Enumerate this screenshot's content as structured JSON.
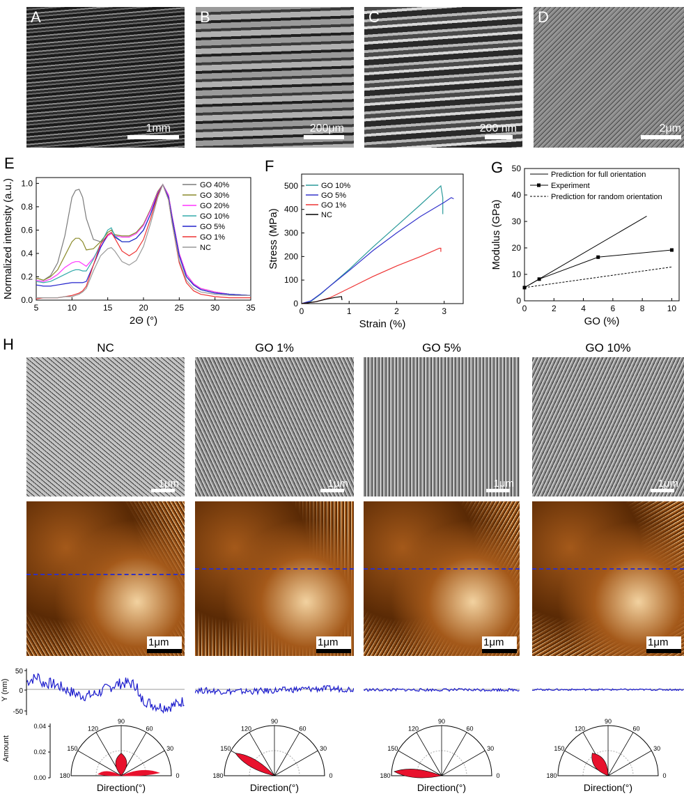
{
  "micrographs": [
    {
      "letter": "A",
      "scale": "1mm"
    },
    {
      "letter": "B",
      "scale": "200μm"
    },
    {
      "letter": "C",
      "scale": "200 nm"
    },
    {
      "letter": "D",
      "scale": "2μm"
    }
  ],
  "panel_letters": {
    "E": "E",
    "F": "F",
    "G": "G",
    "H": "H"
  },
  "chart_data": [
    {
      "panel": "E",
      "type": "line",
      "xlabel": "2Θ (°)",
      "ylabel": "Normalized intensity (a.u.)",
      "xlim": [
        5,
        35
      ],
      "ylim": [
        0,
        1.05
      ],
      "xticks": [
        5,
        10,
        15,
        20,
        25,
        30,
        35
      ],
      "yticks": [
        0.0,
        0.2,
        0.4,
        0.6,
        0.8,
        1.0
      ],
      "legend_position": "top-right",
      "series": [
        {
          "name": "GO 40%",
          "color": "#7a7a7a",
          "x": [
            5,
            6,
            7,
            8,
            9,
            10,
            10.5,
            11,
            11.5,
            12,
            13,
            14,
            15,
            15.5,
            16,
            17,
            18,
            19,
            20,
            21,
            22,
            22.7,
            23.5,
            24,
            25,
            26,
            27,
            28,
            30,
            32,
            35
          ],
          "y": [
            0.19,
            0.17,
            0.21,
            0.32,
            0.55,
            0.88,
            0.94,
            0.95,
            0.88,
            0.7,
            0.52,
            0.5,
            0.58,
            0.6,
            0.56,
            0.55,
            0.55,
            0.58,
            0.65,
            0.78,
            0.93,
            0.99,
            0.9,
            0.72,
            0.4,
            0.22,
            0.14,
            0.1,
            0.07,
            0.05,
            0.04
          ]
        },
        {
          "name": "GO 30%",
          "color": "#8a8a2a",
          "x": [
            5,
            6,
            7,
            8,
            9,
            10,
            10.5,
            11,
            11.5,
            12,
            13,
            14,
            15,
            15.5,
            16,
            17,
            18,
            19,
            20,
            21,
            22,
            22.7,
            23.5,
            24,
            25,
            26,
            27,
            28,
            30,
            32,
            35
          ],
          "y": [
            0.19,
            0.17,
            0.2,
            0.26,
            0.38,
            0.5,
            0.53,
            0.53,
            0.5,
            0.43,
            0.44,
            0.5,
            0.58,
            0.6,
            0.56,
            0.55,
            0.55,
            0.58,
            0.65,
            0.78,
            0.93,
            0.99,
            0.9,
            0.72,
            0.4,
            0.22,
            0.14,
            0.1,
            0.07,
            0.05,
            0.04
          ]
        },
        {
          "name": "GO 20%",
          "color": "#ff33ff",
          "x": [
            5,
            6,
            7,
            8,
            9,
            10,
            10.5,
            11,
            11.5,
            12,
            13,
            14,
            15,
            15.5,
            16,
            17,
            18,
            19,
            20,
            21,
            22,
            22.7,
            23.5,
            24,
            25,
            26,
            27,
            28,
            30,
            32,
            35
          ],
          "y": [
            0.17,
            0.16,
            0.18,
            0.22,
            0.28,
            0.32,
            0.33,
            0.33,
            0.31,
            0.29,
            0.36,
            0.46,
            0.55,
            0.57,
            0.55,
            0.54,
            0.54,
            0.57,
            0.64,
            0.77,
            0.92,
            0.99,
            0.9,
            0.72,
            0.4,
            0.22,
            0.14,
            0.1,
            0.07,
            0.05,
            0.04
          ]
        },
        {
          "name": "GO 10%",
          "color": "#33aaaa",
          "x": [
            5,
            6,
            7,
            8,
            9,
            10,
            10.5,
            11,
            11.5,
            12,
            13,
            14,
            15,
            15.5,
            16,
            17,
            18,
            19,
            20,
            21,
            22,
            22.7,
            23.5,
            24,
            25,
            26,
            27,
            28,
            30,
            32,
            35
          ],
          "y": [
            0.16,
            0.15,
            0.16,
            0.19,
            0.22,
            0.25,
            0.26,
            0.26,
            0.25,
            0.25,
            0.35,
            0.48,
            0.6,
            0.62,
            0.55,
            0.5,
            0.5,
            0.53,
            0.6,
            0.74,
            0.91,
            0.99,
            0.88,
            0.7,
            0.38,
            0.2,
            0.13,
            0.09,
            0.06,
            0.05,
            0.04
          ]
        },
        {
          "name": "GO 5%",
          "color": "#2222cc",
          "x": [
            5,
            6,
            7,
            8,
            9,
            10,
            10.5,
            11,
            11.5,
            12,
            13,
            14,
            15,
            15.5,
            16,
            17,
            18,
            19,
            20,
            21,
            22,
            22.7,
            23.5,
            24,
            25,
            26,
            27,
            28,
            30,
            32,
            35
          ],
          "y": [
            0.13,
            0.12,
            0.12,
            0.13,
            0.14,
            0.15,
            0.15,
            0.15,
            0.15,
            0.16,
            0.3,
            0.45,
            0.56,
            0.58,
            0.54,
            0.5,
            0.5,
            0.53,
            0.6,
            0.74,
            0.91,
            0.99,
            0.88,
            0.7,
            0.38,
            0.2,
            0.13,
            0.09,
            0.06,
            0.05,
            0.04
          ]
        },
        {
          "name": "GO 1%",
          "color": "#ee3333",
          "x": [
            5,
            6,
            7,
            8,
            9,
            10,
            10.5,
            11,
            11.5,
            12,
            13,
            14,
            15,
            15.5,
            16,
            17,
            18,
            19,
            20,
            21,
            22,
            22.7,
            23.5,
            24,
            25,
            26,
            27,
            28,
            30,
            32,
            35
          ],
          "y": [
            0.01,
            0.02,
            0.02,
            0.02,
            0.03,
            0.04,
            0.05,
            0.06,
            0.08,
            0.12,
            0.3,
            0.48,
            0.56,
            0.58,
            0.53,
            0.42,
            0.38,
            0.42,
            0.52,
            0.7,
            0.9,
            0.99,
            0.86,
            0.66,
            0.32,
            0.15,
            0.08,
            0.05,
            0.03,
            0.02,
            0.02
          ]
        },
        {
          "name": "NC",
          "color": "#999999",
          "x": [
            5,
            6,
            7,
            8,
            9,
            10,
            10.5,
            11,
            11.5,
            12,
            13,
            14,
            15,
            15.5,
            16,
            17,
            18,
            19,
            20,
            21,
            22,
            22.7,
            23.5,
            24,
            25,
            26,
            27,
            28,
            30,
            32,
            35
          ],
          "y": [
            0.02,
            0.02,
            0.02,
            0.02,
            0.03,
            0.03,
            0.04,
            0.05,
            0.07,
            0.1,
            0.25,
            0.38,
            0.44,
            0.45,
            0.42,
            0.33,
            0.3,
            0.34,
            0.46,
            0.66,
            0.88,
            0.99,
            0.86,
            0.66,
            0.34,
            0.17,
            0.1,
            0.07,
            0.05,
            0.04,
            0.04
          ]
        }
      ]
    },
    {
      "panel": "F",
      "type": "line",
      "xlabel": "Strain (%)",
      "ylabel": "Stress (MPa)",
      "xlim": [
        0,
        3.4
      ],
      "ylim": [
        0,
        550
      ],
      "xticks": [
        0,
        1,
        2,
        3
      ],
      "yticks": [
        0,
        100,
        200,
        300,
        400,
        500
      ],
      "legend_position": "top-left",
      "series": [
        {
          "name": "GO 10%",
          "color": "#2a9a9a",
          "x": [
            0,
            0.2,
            0.4,
            0.6,
            1.0,
            1.5,
            2.0,
            2.5,
            2.93,
            2.97,
            2.97
          ],
          "y": [
            0,
            10,
            40,
            75,
            145,
            240,
            330,
            420,
            500,
            450,
            380
          ]
        },
        {
          "name": "GO 5%",
          "color": "#3333cc",
          "x": [
            0,
            0.2,
            0.4,
            0.6,
            1.0,
            1.5,
            2.0,
            2.5,
            3.0,
            3.15,
            3.2
          ],
          "y": [
            0,
            12,
            42,
            75,
            140,
            225,
            300,
            370,
            430,
            450,
            445
          ]
        },
        {
          "name": "GO 1%",
          "color": "#ee3333",
          "x": [
            0,
            0.3,
            0.6,
            1.0,
            1.5,
            2.0,
            2.5,
            2.9,
            2.93,
            2.93
          ],
          "y": [
            0,
            8,
            25,
            65,
            115,
            160,
            200,
            235,
            235,
            220
          ]
        },
        {
          "name": "NC",
          "color": "#000000",
          "x": [
            0,
            0.3,
            0.5,
            0.7,
            0.84,
            0.85
          ],
          "y": [
            0,
            8,
            18,
            26,
            30,
            15
          ]
        }
      ]
    },
    {
      "panel": "G",
      "type": "line",
      "xlabel": "GO (%)",
      "ylabel": "Modulus (GPa)",
      "xlim": [
        0,
        10.5
      ],
      "ylim": [
        0,
        50
      ],
      "xticks": [
        0,
        2,
        4,
        6,
        8,
        10
      ],
      "yticks": [
        0,
        10,
        20,
        30,
        40,
        50
      ],
      "legend_position": "top",
      "series": [
        {
          "name": "Prediction for full orientation",
          "color": "#000000",
          "style": "solid",
          "x": [
            0,
            8.3
          ],
          "y": [
            5,
            32
          ]
        },
        {
          "name": "Experiment",
          "color": "#000000",
          "style": "markers",
          "x": [
            0,
            1,
            5,
            10
          ],
          "y": [
            5,
            8.2,
            16.5,
            19.2
          ]
        },
        {
          "name": "Prediction for random orientation",
          "color": "#000000",
          "style": "dashed",
          "x": [
            0,
            10
          ],
          "y": [
            5,
            12.8
          ]
        }
      ]
    }
  ],
  "h_panel": {
    "labels": [
      "NC",
      "GO 1%",
      "GO 5%",
      "GO 10%"
    ],
    "scale_label": "1μm",
    "profile_ylabel": "Y (nm)",
    "profile_yticks": [
      50,
      0,
      -50
    ],
    "amount_label": "Amount",
    "amount_ticks": [
      "0.04",
      "0.02",
      "0.00"
    ],
    "polar_ticks": [
      "180",
      "150",
      "120",
      "90",
      "60",
      "30",
      "0"
    ],
    "polar_xlabel": "Direction(°)",
    "polar_lobes": [
      {
        "angle": 90,
        "length": 0.45
      },
      {
        "angle": 150,
        "length": 0.9
      },
      {
        "angle": 175,
        "length": 0.95
      },
      {
        "angle": 125,
        "length": 0.55
      }
    ],
    "profile_amplitude": [
      1.0,
      0.55,
      0.25,
      0.15
    ]
  },
  "colors": {
    "afm_dark": "#5a2a05",
    "afm_mid": "#a4591a",
    "afm_light": "#f2d2a0",
    "profile_blue": "#1a1acc",
    "polar_red": "#e8112d"
  }
}
